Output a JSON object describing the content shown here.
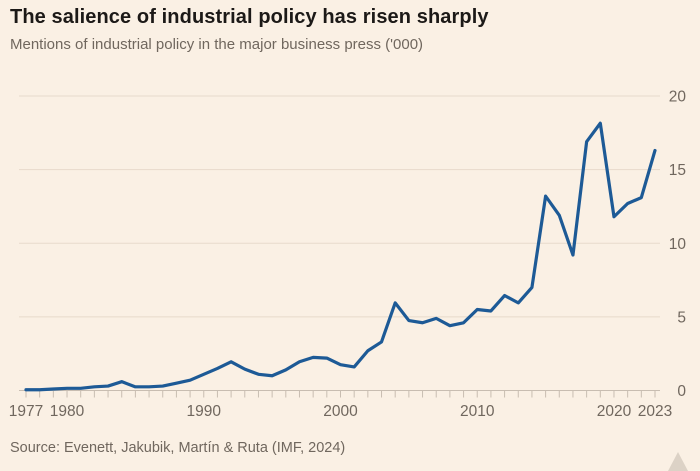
{
  "header": {
    "title": "The salience of industrial policy has risen sharply",
    "subtitle": "Mentions of industrial policy in the major business press ('000)"
  },
  "footer": {
    "source": "Source: Evenett, Jakubik, Martín & Ruta (IMF, 2024)"
  },
  "colors": {
    "background": "#faf0e4",
    "line": "#1d5a96",
    "text_dark": "#1c1917",
    "text_muted": "#70675e",
    "gridline": "#e7dacb",
    "axis": "#c8bdb1"
  },
  "chart_data": {
    "type": "line",
    "title": "The salience of industrial policy has risen sharply",
    "subtitle": "Mentions of industrial policy in the major business press ('000)",
    "source": "Source: Evenett, Jakubik, Martín & Ruta (IMF, 2024)",
    "legend": false,
    "grid": true,
    "y_axis_side": "right",
    "xlim": [
      1977,
      2023
    ],
    "ylim": [
      0,
      20
    ],
    "x_tick_labels": [
      "1977",
      "1980",
      "1990",
      "2000",
      "2010",
      "2020",
      "2023"
    ],
    "x_tick_values": [
      1977,
      1980,
      1990,
      2000,
      2010,
      2020,
      2023
    ],
    "y_tick_values": [
      0,
      5,
      10,
      15,
      20
    ],
    "x": [
      1977,
      1978,
      1979,
      1980,
      1981,
      1982,
      1983,
      1984,
      1985,
      1986,
      1987,
      1988,
      1989,
      1990,
      1991,
      1992,
      1993,
      1994,
      1995,
      1996,
      1997,
      1998,
      1999,
      2000,
      2001,
      2002,
      2003,
      2004,
      2005,
      2006,
      2007,
      2008,
      2009,
      2010,
      2011,
      2012,
      2013,
      2014,
      2015,
      2016,
      2017,
      2018,
      2019,
      2020,
      2021,
      2022,
      2023
    ],
    "values": [
      0.05,
      0.05,
      0.1,
      0.15,
      0.15,
      0.25,
      0.3,
      0.6,
      0.25,
      0.25,
      0.3,
      0.5,
      0.7,
      1.1,
      1.5,
      1.95,
      1.45,
      1.1,
      1.0,
      1.4,
      1.95,
      2.25,
      2.2,
      1.75,
      1.6,
      2.7,
      3.3,
      5.95,
      4.75,
      4.6,
      4.9,
      4.4,
      4.6,
      5.5,
      5.4,
      6.45,
      5.95,
      7.0,
      13.2,
      11.9,
      9.2,
      16.9,
      18.15,
      11.8,
      12.7,
      13.1,
      16.3
    ]
  }
}
